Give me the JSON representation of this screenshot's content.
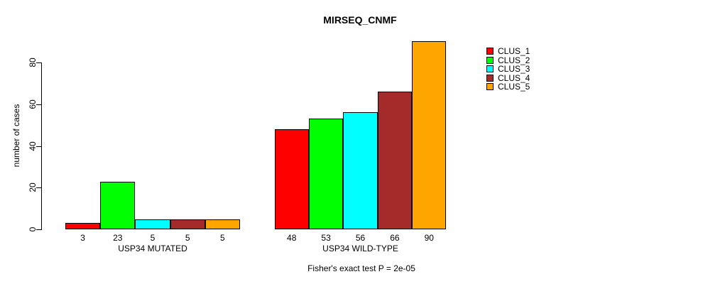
{
  "title": "MIRSEQ_CNMF",
  "y_axis": {
    "label": "number of cases",
    "ticks": [
      "0",
      "20",
      "40",
      "60",
      "80"
    ]
  },
  "caption": "Fisher's exact test P = 2e-05",
  "legend": [
    {
      "label": "CLUS_1",
      "color": "#FF0000"
    },
    {
      "label": "CLUS_2",
      "color": "#00FF00"
    },
    {
      "label": "CLUS_3",
      "color": "#00FFFF"
    },
    {
      "label": "CLUS_4",
      "color": "#A52A2A"
    },
    {
      "label": "CLUS_5",
      "color": "#FFA500"
    }
  ],
  "chart_data": {
    "type": "bar",
    "title": "MIRSEQ_CNMF",
    "xlabel": "",
    "ylabel": "number of cases",
    "ylim": [
      0,
      90
    ],
    "yticks": [
      0,
      20,
      40,
      60,
      80
    ],
    "grid": false,
    "legend_position": "right",
    "bar_value_labels_shown": true,
    "categories": [
      "USP34 MUTATED",
      "USP34 WILD-TYPE"
    ],
    "series": [
      {
        "name": "CLUS_1",
        "color": "#FF0000",
        "values": [
          3,
          48
        ]
      },
      {
        "name": "CLUS_2",
        "color": "#00FF00",
        "values": [
          23,
          53
        ]
      },
      {
        "name": "CLUS_3",
        "color": "#00FFFF",
        "values": [
          5,
          56
        ]
      },
      {
        "name": "CLUS_4",
        "color": "#A52A2A",
        "values": [
          5,
          66
        ]
      },
      {
        "name": "CLUS_5",
        "color": "#FFA500",
        "values": [
          5,
          90
        ]
      }
    ],
    "annotation": "Fisher's exact test P = 2e-05"
  }
}
